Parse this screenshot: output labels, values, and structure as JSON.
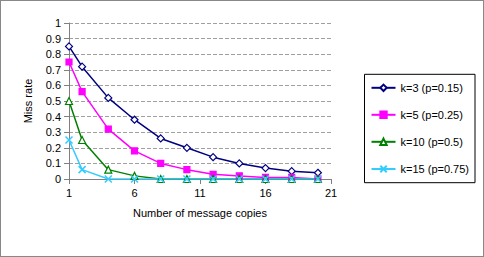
{
  "chart_data": {
    "type": "line",
    "x_label": "Number of message copies",
    "y_label": "Miss rate",
    "x": [
      1,
      2,
      4,
      6,
      8,
      10,
      12,
      14,
      16,
      18,
      20
    ],
    "series": [
      {
        "name": "k=3 (p=0.15)",
        "color": "#000080",
        "marker": "diamond",
        "values": [
          0.85,
          0.72,
          0.52,
          0.38,
          0.26,
          0.2,
          0.14,
          0.1,
          0.07,
          0.05,
          0.04
        ]
      },
      {
        "name": "k=5 (p=0.25)",
        "color": "#ff00ff",
        "marker": "square",
        "values": [
          0.75,
          0.56,
          0.32,
          0.18,
          0.1,
          0.06,
          0.03,
          0.02,
          0.01,
          0.01,
          0.0
        ]
      },
      {
        "name": "k=10 (p=0.5)",
        "color": "#008000",
        "marker": "triangle",
        "values": [
          0.5,
          0.25,
          0.06,
          0.02,
          0.0,
          0.0,
          0.0,
          0.0,
          0.0,
          0.0,
          0.0
        ]
      },
      {
        "name": "k=15 (p=0.75)",
        "color": "#33ccff",
        "marker": "x",
        "values": [
          0.25,
          0.06,
          0.0,
          0.0,
          0.0,
          0.0,
          0.0,
          0.0,
          0.0,
          0.0,
          0.0
        ]
      }
    ],
    "xlim": [
      1,
      21
    ],
    "xticks": [
      1,
      6,
      11,
      16,
      21
    ],
    "ylim": [
      0,
      1
    ],
    "yticks": [
      0,
      0.1,
      0.2,
      0.3,
      0.4,
      0.5,
      0.6,
      0.7,
      0.8,
      0.9,
      1
    ],
    "grid": true,
    "legend": "right"
  }
}
